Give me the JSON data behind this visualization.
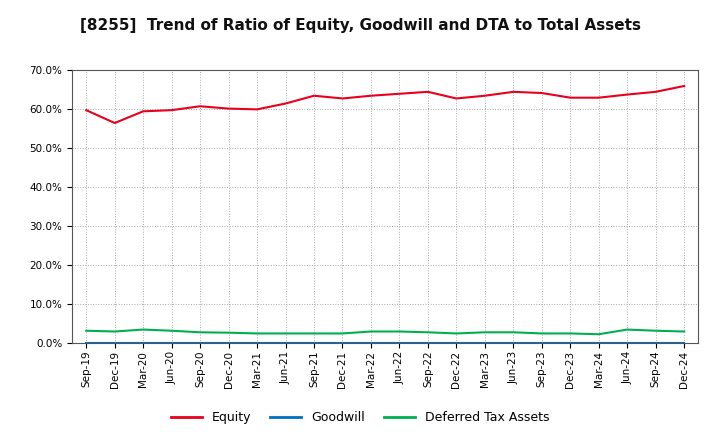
{
  "title": "[8255]  Trend of Ratio of Equity, Goodwill and DTA to Total Assets",
  "x_labels": [
    "Sep-19",
    "Dec-19",
    "Mar-20",
    "Jun-20",
    "Sep-20",
    "Dec-20",
    "Mar-21",
    "Jun-21",
    "Sep-21",
    "Dec-21",
    "Mar-22",
    "Jun-22",
    "Sep-22",
    "Dec-22",
    "Mar-23",
    "Jun-23",
    "Sep-23",
    "Dec-23",
    "Mar-24",
    "Jun-24",
    "Sep-24",
    "Dec-24"
  ],
  "equity": [
    59.8,
    56.5,
    59.5,
    59.8,
    60.8,
    60.2,
    60.0,
    61.5,
    63.5,
    62.8,
    63.5,
    64.0,
    64.5,
    62.8,
    63.5,
    64.5,
    64.2,
    63.0,
    63.0,
    63.8,
    64.5,
    66.0
  ],
  "goodwill": [
    0.0,
    0.0,
    0.0,
    0.0,
    0.0,
    0.0,
    0.0,
    0.0,
    0.0,
    0.0,
    0.0,
    0.0,
    0.0,
    0.0,
    0.0,
    0.0,
    0.0,
    0.0,
    0.0,
    0.0,
    0.0,
    0.0
  ],
  "dta": [
    3.2,
    3.0,
    3.5,
    3.2,
    2.8,
    2.7,
    2.5,
    2.5,
    2.5,
    2.5,
    3.0,
    3.0,
    2.8,
    2.5,
    2.8,
    2.8,
    2.5,
    2.5,
    2.3,
    3.5,
    3.2,
    3.0
  ],
  "equity_color": "#e8001c",
  "goodwill_color": "#0070c0",
  "dta_color": "#00b050",
  "bg_color": "#ffffff",
  "grid_color": "#aaaaaa",
  "ylim": [
    0,
    70
  ],
  "yticks": [
    0,
    10,
    20,
    30,
    40,
    50,
    60,
    70
  ],
  "legend_labels": [
    "Equity",
    "Goodwill",
    "Deferred Tax Assets"
  ],
  "title_fontsize": 11,
  "axis_fontsize": 7.5,
  "legend_fontsize": 9
}
